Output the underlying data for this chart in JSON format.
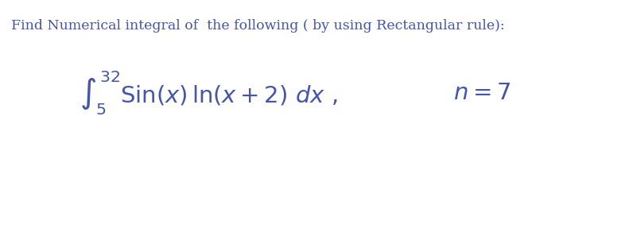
{
  "background_color": "#ffffff",
  "title_text": "Find Numerical integral of  the following ( by using Rectangular rule):",
  "title_color": "#4455aa",
  "title_fontsize": 12.5,
  "integral_formula": "$\\int_5^{32} \\mathrm{Sin}(x)\\,\\ln(x+2)\\ dx\\ ,$",
  "integral_color": "#4455aa",
  "integral_fontsize": 21,
  "n_formula": "$n = 7$",
  "n_color": "#4455aa",
  "n_fontsize": 21
}
